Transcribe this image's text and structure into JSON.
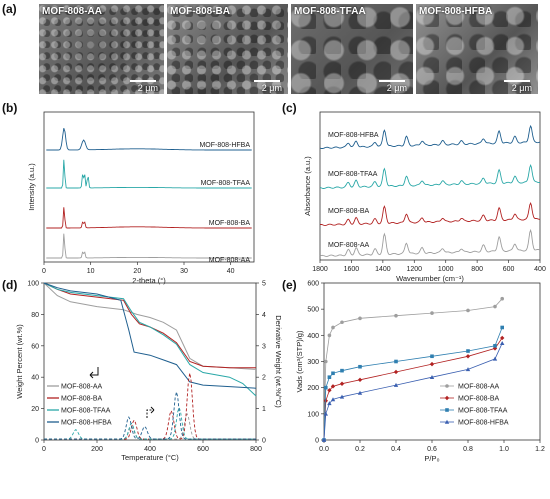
{
  "panels": {
    "a": "(a)",
    "b": "(b)",
    "c": "(c)",
    "d": "(d)",
    "e": "(e)"
  },
  "sem": [
    {
      "label": "MOF-808-AA",
      "scale": "2 μm",
      "tone": "#7c7c7c"
    },
    {
      "label": "MOF-808-BA",
      "scale": "2 μm",
      "tone": "#8a8a8a"
    },
    {
      "label": "MOF-808-TFAA",
      "scale": "2 μm",
      "tone": "#6e6e6e"
    },
    {
      "label": "MOF-808-HFBA",
      "scale": "2 μm",
      "tone": "#939393"
    }
  ],
  "colors": {
    "AA": "#9e9e9e",
    "BA": "#b22222",
    "TFAA": "#2aa8a8",
    "HFBA": "#1f5f8f",
    "HFBA_e": "#3a5fb0",
    "TFAA_e": "#2f7fb0"
  },
  "chart_data": [
    {
      "type": "line",
      "panel": "b",
      "xlabel": "2-theta (°)",
      "ylabel": "Intensity (a.u.)",
      "xlim": [
        0,
        45
      ],
      "xticks": [
        0,
        10,
        20,
        30,
        40
      ],
      "series": [
        {
          "name": "MOF-808-HFBA",
          "peaks": [
            4.3,
            8.3,
            8.7
          ]
        },
        {
          "name": "MOF-808-TFAA",
          "peaks": [
            4.3,
            8.3,
            8.7,
            9.4
          ]
        },
        {
          "name": "MOF-808-BA",
          "peaks": [
            4.3,
            8.3,
            8.7
          ]
        },
        {
          "name": "MOF-808-AA",
          "peaks": [
            4.3,
            8.3,
            8.7
          ]
        }
      ]
    },
    {
      "type": "line",
      "panel": "c",
      "xlabel": "Wavenumber (cm⁻¹)",
      "ylabel": "Absorbance (a.u.)",
      "xlim": [
        1800,
        400
      ],
      "xticks": [
        1800,
        1600,
        1400,
        1200,
        1000,
        800,
        600,
        400
      ],
      "series": [
        {
          "name": "MOF-808-HFBA"
        },
        {
          "name": "MOF-808-TFAA"
        },
        {
          "name": "MOF-808-BA"
        },
        {
          "name": "MOF-808-AA"
        }
      ]
    },
    {
      "type": "line",
      "panel": "d",
      "xlabel": "Temperature (°C)",
      "ylabel": "Weight Percent (wt.%)",
      "y2label": "Derivative Weight (wt.%/°C)",
      "xlim": [
        0,
        800
      ],
      "ylim": [
        0,
        100
      ],
      "y2lim": [
        0,
        5
      ],
      "xticks": [
        0,
        200,
        400,
        600,
        800
      ],
      "yticks": [
        0,
        20,
        40,
        60,
        80,
        100
      ],
      "y2ticks": [
        0,
        1,
        2,
        3,
        4,
        5
      ],
      "legend": [
        "MOF-808-AA",
        "MOF-808-BA",
        "MOF-808-TFAA",
        "MOF-808-HFBA"
      ],
      "series": [
        {
          "name": "MOF-808-AA",
          "x": [
            0,
            50,
            100,
            200,
            300,
            350,
            400,
            450,
            500,
            550,
            600,
            700,
            800
          ],
          "y": [
            100,
            92,
            88,
            85,
            83,
            80,
            78,
            75,
            70,
            52,
            47,
            46,
            45
          ]
        },
        {
          "name": "MOF-808-BA",
          "x": [
            0,
            50,
            100,
            200,
            300,
            330,
            360,
            400,
            450,
            500,
            550,
            600,
            700,
            800
          ],
          "y": [
            100,
            96,
            93,
            91,
            89,
            80,
            74,
            72,
            68,
            62,
            50,
            47,
            46,
            46
          ]
        },
        {
          "name": "MOF-808-TFAA",
          "x": [
            0,
            50,
            100,
            200,
            300,
            330,
            360,
            400,
            450,
            500,
            550,
            600,
            700,
            750,
            800
          ],
          "y": [
            100,
            96,
            94,
            92,
            90,
            82,
            75,
            72,
            67,
            61,
            48,
            43,
            40,
            36,
            28
          ]
        },
        {
          "name": "MOF-808-HFBA",
          "x": [
            0,
            50,
            100,
            200,
            290,
            320,
            340,
            400,
            450,
            500,
            550,
            600,
            700,
            800
          ],
          "y": [
            100,
            97,
            95,
            93,
            89,
            70,
            56,
            54,
            51,
            48,
            37,
            35,
            34,
            33
          ]
        }
      ]
    },
    {
      "type": "scatter",
      "panel": "e",
      "xlabel": "P/P₀",
      "ylabel": "Vads (cm³(STP)/g)",
      "xlim": [
        0,
        1.2
      ],
      "ylim": [
        0,
        600
      ],
      "xticks": [
        0.0,
        0.2,
        0.4,
        0.6,
        0.8,
        1.0,
        1.2
      ],
      "yticks": [
        0,
        100,
        200,
        300,
        400,
        500,
        600
      ],
      "legend": [
        "MOF-808-AA",
        "MOF-808-BA",
        "MOF-808-TFAA",
        "MOF-808-HFBA"
      ],
      "series": [
        {
          "name": "MOF-808-AA",
          "x": [
            0.0,
            0.01,
            0.03,
            0.05,
            0.1,
            0.2,
            0.4,
            0.6,
            0.8,
            0.95,
            0.99
          ],
          "y": [
            0,
            300,
            400,
            430,
            450,
            465,
            475,
            485,
            495,
            510,
            540
          ]
        },
        {
          "name": "MOF-808-BA",
          "x": [
            0.0,
            0.01,
            0.03,
            0.05,
            0.1,
            0.2,
            0.4,
            0.6,
            0.8,
            0.95,
            0.99
          ],
          "y": [
            0,
            150,
            190,
            205,
            215,
            230,
            260,
            290,
            320,
            350,
            390
          ]
        },
        {
          "name": "MOF-808-TFAA",
          "x": [
            0.0,
            0.01,
            0.03,
            0.05,
            0.1,
            0.2,
            0.4,
            0.6,
            0.8,
            0.95,
            0.99
          ],
          "y": [
            0,
            200,
            240,
            255,
            265,
            280,
            300,
            320,
            340,
            360,
            430
          ]
        },
        {
          "name": "MOF-808-HFBA",
          "x": [
            0.0,
            0.01,
            0.03,
            0.05,
            0.1,
            0.2,
            0.4,
            0.6,
            0.8,
            0.95,
            0.99
          ],
          "y": [
            0,
            100,
            140,
            155,
            165,
            180,
            210,
            240,
            270,
            310,
            370
          ]
        }
      ]
    }
  ]
}
